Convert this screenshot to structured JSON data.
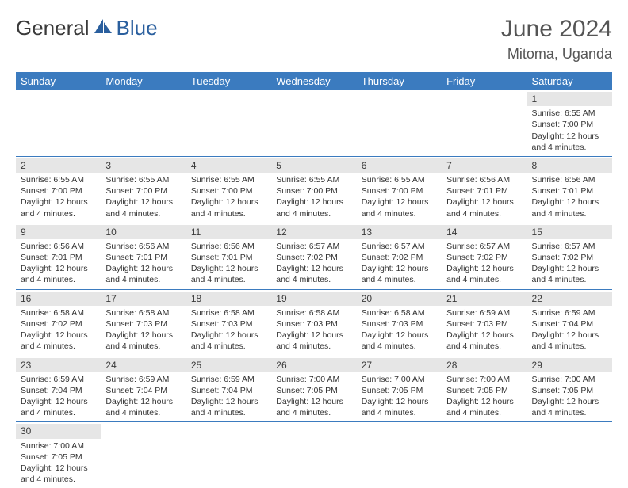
{
  "brand": {
    "part1": "General",
    "part2": "Blue",
    "logo_color": "#2a5f9e"
  },
  "title": {
    "month": "June 2024",
    "location": "Mitoma, Uganda"
  },
  "colors": {
    "header_bg": "#3b7bbf",
    "header_fg": "#ffffff",
    "row_divider": "#3b7bbf",
    "daynum_bg": "#e6e6e6"
  },
  "day_headers": [
    "Sunday",
    "Monday",
    "Tuesday",
    "Wednesday",
    "Thursday",
    "Friday",
    "Saturday"
  ],
  "weeks": [
    [
      {
        "n": "",
        "sr": "",
        "ss": "",
        "dl": ""
      },
      {
        "n": "",
        "sr": "",
        "ss": "",
        "dl": ""
      },
      {
        "n": "",
        "sr": "",
        "ss": "",
        "dl": ""
      },
      {
        "n": "",
        "sr": "",
        "ss": "",
        "dl": ""
      },
      {
        "n": "",
        "sr": "",
        "ss": "",
        "dl": ""
      },
      {
        "n": "",
        "sr": "",
        "ss": "",
        "dl": ""
      },
      {
        "n": "1",
        "sr": "Sunrise: 6:55 AM",
        "ss": "Sunset: 7:00 PM",
        "dl": "Daylight: 12 hours and 4 minutes."
      }
    ],
    [
      {
        "n": "2",
        "sr": "Sunrise: 6:55 AM",
        "ss": "Sunset: 7:00 PM",
        "dl": "Daylight: 12 hours and 4 minutes."
      },
      {
        "n": "3",
        "sr": "Sunrise: 6:55 AM",
        "ss": "Sunset: 7:00 PM",
        "dl": "Daylight: 12 hours and 4 minutes."
      },
      {
        "n": "4",
        "sr": "Sunrise: 6:55 AM",
        "ss": "Sunset: 7:00 PM",
        "dl": "Daylight: 12 hours and 4 minutes."
      },
      {
        "n": "5",
        "sr": "Sunrise: 6:55 AM",
        "ss": "Sunset: 7:00 PM",
        "dl": "Daylight: 12 hours and 4 minutes."
      },
      {
        "n": "6",
        "sr": "Sunrise: 6:55 AM",
        "ss": "Sunset: 7:00 PM",
        "dl": "Daylight: 12 hours and 4 minutes."
      },
      {
        "n": "7",
        "sr": "Sunrise: 6:56 AM",
        "ss": "Sunset: 7:01 PM",
        "dl": "Daylight: 12 hours and 4 minutes."
      },
      {
        "n": "8",
        "sr": "Sunrise: 6:56 AM",
        "ss": "Sunset: 7:01 PM",
        "dl": "Daylight: 12 hours and 4 minutes."
      }
    ],
    [
      {
        "n": "9",
        "sr": "Sunrise: 6:56 AM",
        "ss": "Sunset: 7:01 PM",
        "dl": "Daylight: 12 hours and 4 minutes."
      },
      {
        "n": "10",
        "sr": "Sunrise: 6:56 AM",
        "ss": "Sunset: 7:01 PM",
        "dl": "Daylight: 12 hours and 4 minutes."
      },
      {
        "n": "11",
        "sr": "Sunrise: 6:56 AM",
        "ss": "Sunset: 7:01 PM",
        "dl": "Daylight: 12 hours and 4 minutes."
      },
      {
        "n": "12",
        "sr": "Sunrise: 6:57 AM",
        "ss": "Sunset: 7:02 PM",
        "dl": "Daylight: 12 hours and 4 minutes."
      },
      {
        "n": "13",
        "sr": "Sunrise: 6:57 AM",
        "ss": "Sunset: 7:02 PM",
        "dl": "Daylight: 12 hours and 4 minutes."
      },
      {
        "n": "14",
        "sr": "Sunrise: 6:57 AM",
        "ss": "Sunset: 7:02 PM",
        "dl": "Daylight: 12 hours and 4 minutes."
      },
      {
        "n": "15",
        "sr": "Sunrise: 6:57 AM",
        "ss": "Sunset: 7:02 PM",
        "dl": "Daylight: 12 hours and 4 minutes."
      }
    ],
    [
      {
        "n": "16",
        "sr": "Sunrise: 6:58 AM",
        "ss": "Sunset: 7:02 PM",
        "dl": "Daylight: 12 hours and 4 minutes."
      },
      {
        "n": "17",
        "sr": "Sunrise: 6:58 AM",
        "ss": "Sunset: 7:03 PM",
        "dl": "Daylight: 12 hours and 4 minutes."
      },
      {
        "n": "18",
        "sr": "Sunrise: 6:58 AM",
        "ss": "Sunset: 7:03 PM",
        "dl": "Daylight: 12 hours and 4 minutes."
      },
      {
        "n": "19",
        "sr": "Sunrise: 6:58 AM",
        "ss": "Sunset: 7:03 PM",
        "dl": "Daylight: 12 hours and 4 minutes."
      },
      {
        "n": "20",
        "sr": "Sunrise: 6:58 AM",
        "ss": "Sunset: 7:03 PM",
        "dl": "Daylight: 12 hours and 4 minutes."
      },
      {
        "n": "21",
        "sr": "Sunrise: 6:59 AM",
        "ss": "Sunset: 7:03 PM",
        "dl": "Daylight: 12 hours and 4 minutes."
      },
      {
        "n": "22",
        "sr": "Sunrise: 6:59 AM",
        "ss": "Sunset: 7:04 PM",
        "dl": "Daylight: 12 hours and 4 minutes."
      }
    ],
    [
      {
        "n": "23",
        "sr": "Sunrise: 6:59 AM",
        "ss": "Sunset: 7:04 PM",
        "dl": "Daylight: 12 hours and 4 minutes."
      },
      {
        "n": "24",
        "sr": "Sunrise: 6:59 AM",
        "ss": "Sunset: 7:04 PM",
        "dl": "Daylight: 12 hours and 4 minutes."
      },
      {
        "n": "25",
        "sr": "Sunrise: 6:59 AM",
        "ss": "Sunset: 7:04 PM",
        "dl": "Daylight: 12 hours and 4 minutes."
      },
      {
        "n": "26",
        "sr": "Sunrise: 7:00 AM",
        "ss": "Sunset: 7:05 PM",
        "dl": "Daylight: 12 hours and 4 minutes."
      },
      {
        "n": "27",
        "sr": "Sunrise: 7:00 AM",
        "ss": "Sunset: 7:05 PM",
        "dl": "Daylight: 12 hours and 4 minutes."
      },
      {
        "n": "28",
        "sr": "Sunrise: 7:00 AM",
        "ss": "Sunset: 7:05 PM",
        "dl": "Daylight: 12 hours and 4 minutes."
      },
      {
        "n": "29",
        "sr": "Sunrise: 7:00 AM",
        "ss": "Sunset: 7:05 PM",
        "dl": "Daylight: 12 hours and 4 minutes."
      }
    ],
    [
      {
        "n": "30",
        "sr": "Sunrise: 7:00 AM",
        "ss": "Sunset: 7:05 PM",
        "dl": "Daylight: 12 hours and 4 minutes."
      },
      {
        "n": "",
        "sr": "",
        "ss": "",
        "dl": ""
      },
      {
        "n": "",
        "sr": "",
        "ss": "",
        "dl": ""
      },
      {
        "n": "",
        "sr": "",
        "ss": "",
        "dl": ""
      },
      {
        "n": "",
        "sr": "",
        "ss": "",
        "dl": ""
      },
      {
        "n": "",
        "sr": "",
        "ss": "",
        "dl": ""
      },
      {
        "n": "",
        "sr": "",
        "ss": "",
        "dl": ""
      }
    ]
  ]
}
